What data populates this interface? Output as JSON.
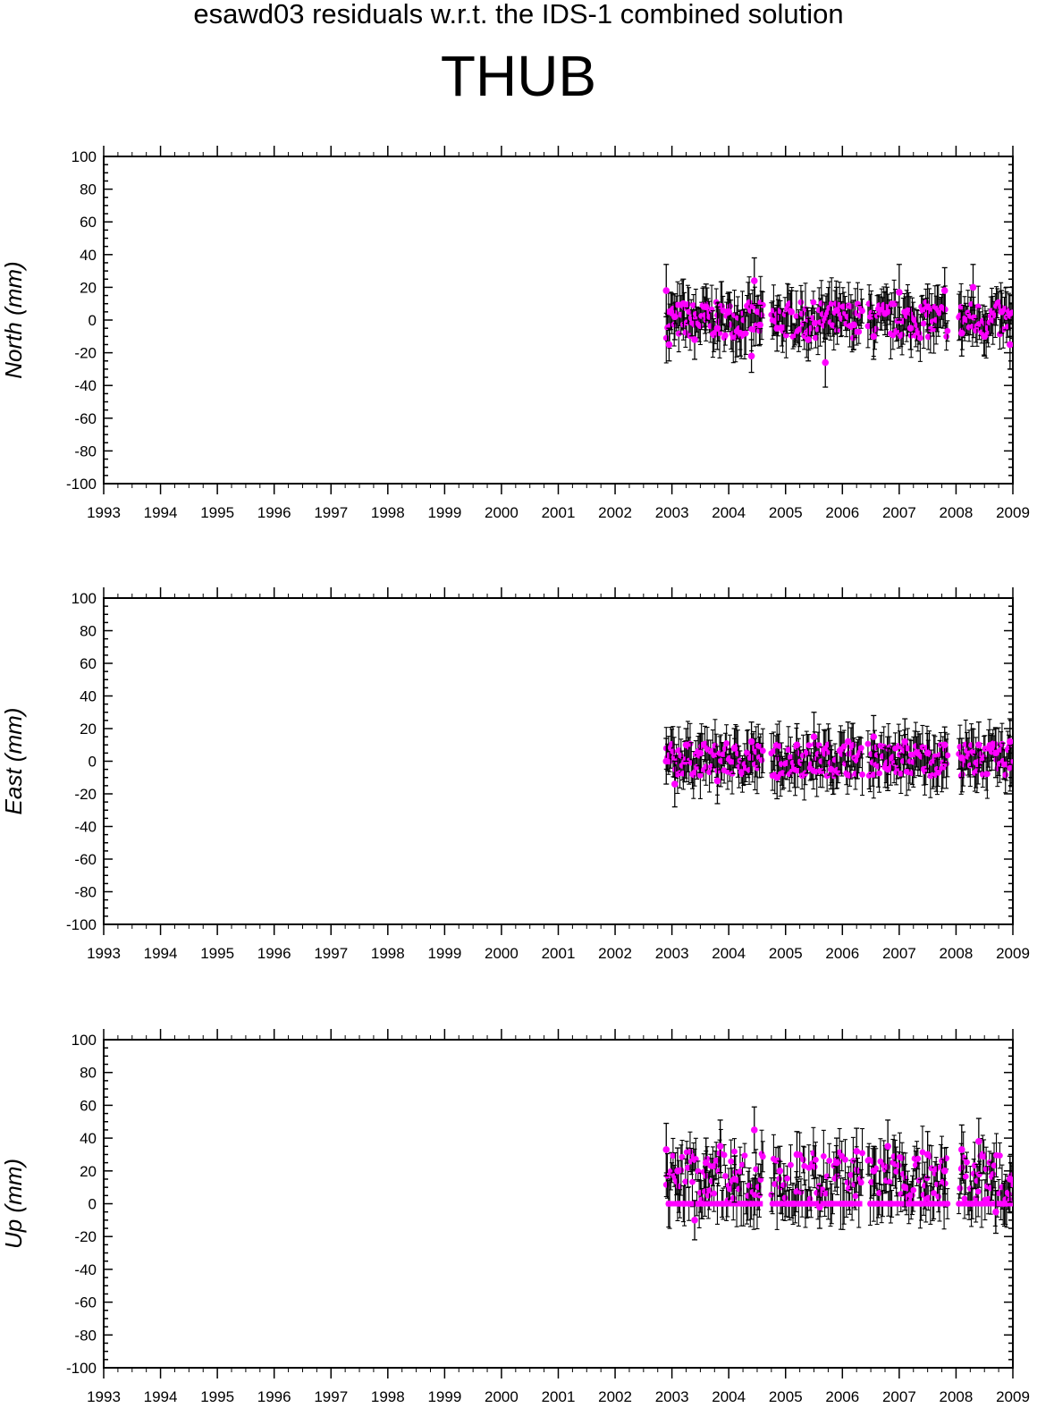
{
  "title": "esawd03 residuals w.r.t. the IDS-1 combined solution",
  "station": "THUB",
  "colors": {
    "point": "#ff00ff",
    "errorbar": "#000000",
    "axis": "#000000"
  },
  "chart_data": [
    {
      "type": "scatter",
      "ylabel": "North (mm)",
      "xlim": [
        1993,
        2009
      ],
      "ylim": [
        -100,
        100
      ],
      "x_ticks": [
        "1993",
        "1994",
        "1995",
        "1996",
        "1997",
        "1998",
        "1999",
        "2000",
        "2001",
        "2002",
        "2003",
        "2004",
        "2005",
        "2006",
        "2007",
        "2008",
        "2009"
      ],
      "y_ticks": [
        "100",
        "80",
        "60",
        "40",
        "20",
        "0",
        "-20",
        "-40",
        "-60",
        "-80",
        "-100"
      ],
      "grid": false,
      "data_segments": [
        [
          2002.9,
          2004.6
        ],
        [
          2004.75,
          2006.35
        ],
        [
          2006.45,
          2007.85
        ],
        [
          2008.05,
          2009.0
        ]
      ],
      "points": [
        {
          "x": 2002.9,
          "y": 18,
          "err": 16
        },
        {
          "x": 2002.95,
          "y": -15,
          "err": 10
        },
        {
          "x": 2003.05,
          "y": 2,
          "err": 14
        },
        {
          "x": 2003.2,
          "y": 10,
          "err": 15
        },
        {
          "x": 2003.4,
          "y": -12,
          "err": 12
        },
        {
          "x": 2003.6,
          "y": 8,
          "err": 14
        },
        {
          "x": 2003.8,
          "y": -5,
          "err": 13
        },
        {
          "x": 2004.0,
          "y": 5,
          "err": 12
        },
        {
          "x": 2004.2,
          "y": -8,
          "err": 14
        },
        {
          "x": 2004.4,
          "y": -22,
          "err": 10
        },
        {
          "x": 2004.45,
          "y": 24,
          "err": 14
        },
        {
          "x": 2004.55,
          "y": -3,
          "err": 12
        },
        {
          "x": 2004.85,
          "y": -5,
          "err": 14
        },
        {
          "x": 2005.1,
          "y": 5,
          "err": 13
        },
        {
          "x": 2005.4,
          "y": -12,
          "err": 13
        },
        {
          "x": 2005.7,
          "y": -26,
          "err": 15
        },
        {
          "x": 2005.9,
          "y": 6,
          "err": 14
        },
        {
          "x": 2006.2,
          "y": -3,
          "err": 15
        },
        {
          "x": 2006.55,
          "y": -10,
          "err": 14
        },
        {
          "x": 2006.75,
          "y": 4,
          "err": 13
        },
        {
          "x": 2007.0,
          "y": 17,
          "err": 17
        },
        {
          "x": 2007.2,
          "y": -5,
          "err": 13
        },
        {
          "x": 2007.5,
          "y": 8,
          "err": 14
        },
        {
          "x": 2007.8,
          "y": 18,
          "err": 14
        },
        {
          "x": 2008.1,
          "y": -8,
          "err": 14
        },
        {
          "x": 2008.3,
          "y": 20,
          "err": 14
        },
        {
          "x": 2008.5,
          "y": -10,
          "err": 12
        },
        {
          "x": 2008.8,
          "y": 5,
          "err": 13
        },
        {
          "x": 2008.95,
          "y": -15,
          "err": 15
        }
      ]
    },
    {
      "type": "scatter",
      "ylabel": "East (mm)",
      "xlim": [
        1993,
        2009
      ],
      "ylim": [
        -100,
        100
      ],
      "x_ticks": [
        "1993",
        "1994",
        "1995",
        "1996",
        "1997",
        "1998",
        "1999",
        "2000",
        "2001",
        "2002",
        "2003",
        "2004",
        "2005",
        "2006",
        "2007",
        "2008",
        "2009"
      ],
      "y_ticks": [
        "100",
        "80",
        "60",
        "40",
        "20",
        "0",
        "-20",
        "-40",
        "-60",
        "-80",
        "-100"
      ],
      "grid": false,
      "data_segments": [
        [
          2002.9,
          2004.6
        ],
        [
          2004.75,
          2006.35
        ],
        [
          2006.45,
          2007.85
        ],
        [
          2008.05,
          2009.0
        ]
      ],
      "points": [
        {
          "x": 2002.9,
          "y": 0,
          "err": 14
        },
        {
          "x": 2003.05,
          "y": -14,
          "err": 14
        },
        {
          "x": 2003.25,
          "y": 10,
          "err": 10
        },
        {
          "x": 2003.5,
          "y": 5,
          "err": 12
        },
        {
          "x": 2003.8,
          "y": -12,
          "err": 14
        },
        {
          "x": 2004.1,
          "y": 8,
          "err": 12
        },
        {
          "x": 2004.4,
          "y": 12,
          "err": 12
        },
        {
          "x": 2004.85,
          "y": -10,
          "err": 13
        },
        {
          "x": 2005.2,
          "y": 10,
          "err": 13
        },
        {
          "x": 2005.5,
          "y": 15,
          "err": 15
        },
        {
          "x": 2005.8,
          "y": -5,
          "err": 12
        },
        {
          "x": 2006.1,
          "y": 12,
          "err": 12
        },
        {
          "x": 2006.55,
          "y": 15,
          "err": 13
        },
        {
          "x": 2006.8,
          "y": -5,
          "err": 13
        },
        {
          "x": 2007.1,
          "y": 12,
          "err": 14
        },
        {
          "x": 2007.5,
          "y": 5,
          "err": 12
        },
        {
          "x": 2007.8,
          "y": 10,
          "err": 11
        },
        {
          "x": 2008.1,
          "y": 2,
          "err": 12
        },
        {
          "x": 2008.4,
          "y": 10,
          "err": 14
        },
        {
          "x": 2008.7,
          "y": 5,
          "err": 15
        },
        {
          "x": 2008.95,
          "y": 12,
          "err": 14
        }
      ]
    },
    {
      "type": "scatter",
      "ylabel": "Up (mm)",
      "xlim": [
        1993,
        2009
      ],
      "ylim": [
        -100,
        100
      ],
      "x_ticks": [
        "1993",
        "1994",
        "1995",
        "1996",
        "1997",
        "1998",
        "1999",
        "2000",
        "2001",
        "2002",
        "2003",
        "2004",
        "2005",
        "2006",
        "2007",
        "2008",
        "2009"
      ],
      "y_ticks": [
        "100",
        "80",
        "60",
        "40",
        "20",
        "0",
        "-20",
        "-40",
        "-60",
        "-80",
        "-100"
      ],
      "grid": false,
      "data_segments": [
        [
          2002.9,
          2004.6
        ],
        [
          2004.75,
          2006.35
        ],
        [
          2006.45,
          2007.85
        ],
        [
          2008.05,
          2009.0
        ]
      ],
      "points": [
        {
          "x": 2002.9,
          "y": 33,
          "err": 16
        },
        {
          "x": 2003.1,
          "y": 20,
          "err": 14
        },
        {
          "x": 2003.4,
          "y": -10,
          "err": 12
        },
        {
          "x": 2003.6,
          "y": 25,
          "err": 15
        },
        {
          "x": 2003.85,
          "y": 35,
          "err": 16
        },
        {
          "x": 2004.1,
          "y": 15,
          "err": 14
        },
        {
          "x": 2004.45,
          "y": 45,
          "err": 14
        },
        {
          "x": 2004.9,
          "y": 20,
          "err": 15
        },
        {
          "x": 2005.2,
          "y": 30,
          "err": 14
        },
        {
          "x": 2005.6,
          "y": -2,
          "err": 13
        },
        {
          "x": 2005.9,
          "y": 25,
          "err": 15
        },
        {
          "x": 2006.25,
          "y": 32,
          "err": 14
        },
        {
          "x": 2006.55,
          "y": 20,
          "err": 15
        },
        {
          "x": 2006.8,
          "y": 35,
          "err": 16
        },
        {
          "x": 2007.1,
          "y": 10,
          "err": 14
        },
        {
          "x": 2007.5,
          "y": 30,
          "err": 14
        },
        {
          "x": 2007.8,
          "y": 20,
          "err": 14
        },
        {
          "x": 2008.1,
          "y": 33,
          "err": 15
        },
        {
          "x": 2008.4,
          "y": 38,
          "err": 14
        },
        {
          "x": 2008.7,
          "y": -5,
          "err": 13
        },
        {
          "x": 2008.95,
          "y": 15,
          "err": 14
        }
      ]
    }
  ]
}
